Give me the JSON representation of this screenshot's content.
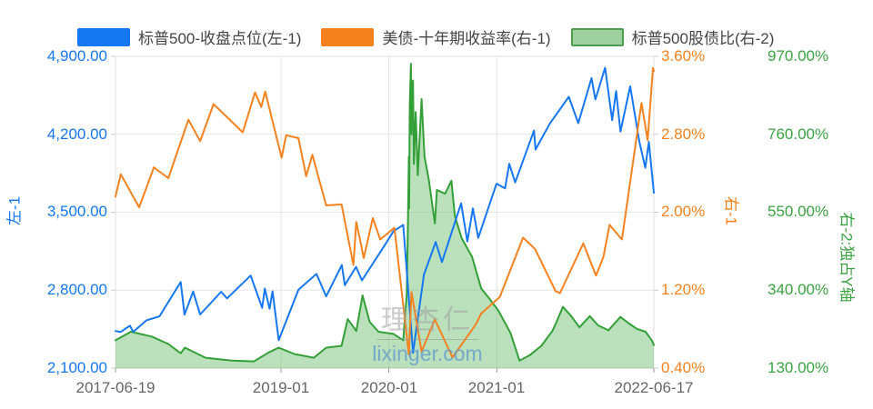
{
  "legend": {
    "items": [
      {
        "label": "标普500-收盘点位(左-1)",
        "swatch_fill": "#1677f2",
        "swatch_border": ""
      },
      {
        "label": "美债-十年期收益率(右-1)",
        "swatch_fill": "#f5821f",
        "swatch_border": ""
      },
      {
        "label": "标普500股债比(右-2)",
        "swatch_fill": "#9fd09f",
        "swatch_border": "#4b9e4e"
      }
    ]
  },
  "watermark": {
    "line1": "理杏仁",
    "line2": "lixinger.com"
  },
  "chart_data": {
    "type": "line",
    "title": "",
    "grid": true,
    "legend_position": "top",
    "x_axis": {
      "range": [
        "2017-06-19",
        "2022-06-17"
      ],
      "labels": [
        "2017-06-19",
        "2019-01",
        "2020-01",
        "2021-01",
        "2022-06-17"
      ],
      "tick_dates": [
        "2017-06-19",
        "2019-01-01",
        "2020-01-01",
        "2021-01-01",
        "2022-06-17"
      ],
      "grid_dates": [
        "2019-01-01",
        "2020-01-01",
        "2021-01-01"
      ]
    },
    "axes": {
      "left1": {
        "name": "左-1",
        "color": "#1677f2",
        "min": 2100,
        "max": 4900,
        "ticks": [
          "4,900.00",
          "4,200.00",
          "3,500.00",
          "2,800.00",
          "2,100.00"
        ]
      },
      "right1": {
        "name": "右-1",
        "color": "#f5821f",
        "min": 0.4,
        "max": 3.6,
        "ticks": [
          "3.60%",
          "2.80%",
          "2.00%",
          "1.20%",
          "0.40%"
        ]
      },
      "right2": {
        "name": "右-2:独占Y轴",
        "color": "#3ba342",
        "min": 130,
        "max": 970,
        "ticks": [
          "970.00%",
          "760.00%",
          "550.00%",
          "340.00%",
          "130.00%"
        ]
      }
    },
    "series": [
      {
        "name": "标普500股债比(右-2)",
        "axis": "right2",
        "type": "area",
        "color": "#33a037",
        "fill": "rgba(102,187,106,0.45)",
        "points": [
          [
            "2017-06-19",
            205
          ],
          [
            "2017-08-10",
            228
          ],
          [
            "2017-10-20",
            215
          ],
          [
            "2017-12-15",
            195
          ],
          [
            "2018-01-26",
            170
          ],
          [
            "2018-02-09",
            185
          ],
          [
            "2018-04-20",
            158
          ],
          [
            "2018-07-20",
            150
          ],
          [
            "2018-10-01",
            148
          ],
          [
            "2018-11-20",
            172
          ],
          [
            "2018-12-24",
            185
          ],
          [
            "2019-02-15",
            168
          ],
          [
            "2019-04-22",
            158
          ],
          [
            "2019-06-03",
            185
          ],
          [
            "2019-07-25",
            190
          ],
          [
            "2019-08-15",
            262
          ],
          [
            "2019-09-13",
            230
          ],
          [
            "2019-10-04",
            326
          ],
          [
            "2019-10-28",
            255
          ],
          [
            "2019-11-27",
            228
          ],
          [
            "2020-01-17",
            222
          ],
          [
            "2020-02-19",
            205
          ],
          [
            "2020-03-02",
            330
          ],
          [
            "2020-03-06",
            520
          ],
          [
            "2020-03-09",
            700
          ],
          [
            "2020-03-10",
            560
          ],
          [
            "2020-03-12",
            840
          ],
          [
            "2020-03-16",
            950
          ],
          [
            "2020-03-18",
            760
          ],
          [
            "2020-03-20",
            870
          ],
          [
            "2020-03-23",
            905
          ],
          [
            "2020-03-26",
            680
          ],
          [
            "2020-04-01",
            820
          ],
          [
            "2020-04-08",
            650
          ],
          [
            "2020-04-21",
            855
          ],
          [
            "2020-05-01",
            700
          ],
          [
            "2020-05-15",
            640
          ],
          [
            "2020-06-05",
            520
          ],
          [
            "2020-06-12",
            610
          ],
          [
            "2020-07-10",
            600
          ],
          [
            "2020-07-31",
            635
          ],
          [
            "2020-08-12",
            540
          ],
          [
            "2020-09-04",
            480
          ],
          [
            "2020-10-09",
            430
          ],
          [
            "2020-11-09",
            345
          ],
          [
            "2020-12-04",
            320
          ],
          [
            "2021-01-06",
            285
          ],
          [
            "2021-02-16",
            225
          ],
          [
            "2021-03-19",
            150
          ],
          [
            "2021-04-23",
            165
          ],
          [
            "2021-06-01",
            190
          ],
          [
            "2021-07-08",
            230
          ],
          [
            "2021-07-20",
            250
          ],
          [
            "2021-08-13",
            295
          ],
          [
            "2021-09-10",
            270
          ],
          [
            "2021-10-08",
            240
          ],
          [
            "2021-11-12",
            270
          ],
          [
            "2021-12-10",
            245
          ],
          [
            "2022-01-14",
            232
          ],
          [
            "2022-02-24",
            268
          ],
          [
            "2022-03-25",
            250
          ],
          [
            "2022-04-22",
            235
          ],
          [
            "2022-05-20",
            228
          ],
          [
            "2022-06-10",
            205
          ],
          [
            "2022-06-17",
            192
          ]
        ]
      },
      {
        "name": "标普500-收盘点位(左-1)",
        "axis": "left1",
        "type": "line",
        "color": "#1677f2",
        "fill": "",
        "points": [
          [
            "2017-06-19",
            2433
          ],
          [
            "2017-07-07",
            2425
          ],
          [
            "2017-08-07",
            2481
          ],
          [
            "2017-08-18",
            2426
          ],
          [
            "2017-10-02",
            2529
          ],
          [
            "2017-11-15",
            2565
          ],
          [
            "2018-01-26",
            2873
          ],
          [
            "2018-02-08",
            2581
          ],
          [
            "2018-03-09",
            2787
          ],
          [
            "2018-04-02",
            2582
          ],
          [
            "2018-06-12",
            2786
          ],
          [
            "2018-07-02",
            2726
          ],
          [
            "2018-09-20",
            2931
          ],
          [
            "2018-10-29",
            2641
          ],
          [
            "2018-11-07",
            2814
          ],
          [
            "2018-11-23",
            2633
          ],
          [
            "2018-12-03",
            2790
          ],
          [
            "2018-12-24",
            2351
          ],
          [
            "2019-03-01",
            2804
          ],
          [
            "2019-05-01",
            2946
          ],
          [
            "2019-06-03",
            2744
          ],
          [
            "2019-07-26",
            3026
          ],
          [
            "2019-08-05",
            2845
          ],
          [
            "2019-09-12",
            3009
          ],
          [
            "2019-10-02",
            2888
          ],
          [
            "2019-12-27",
            3240
          ],
          [
            "2020-01-17",
            3330
          ],
          [
            "2020-02-19",
            3386
          ],
          [
            "2020-03-23",
            2237
          ],
          [
            "2020-04-29",
            2940
          ],
          [
            "2020-06-08",
            3232
          ],
          [
            "2020-06-29",
            3053
          ],
          [
            "2020-09-02",
            3580
          ],
          [
            "2020-09-23",
            3237
          ],
          [
            "2020-10-12",
            3534
          ],
          [
            "2020-10-30",
            3270
          ],
          [
            "2020-12-31",
            3756
          ],
          [
            "2021-01-29",
            3714
          ],
          [
            "2021-02-12",
            3935
          ],
          [
            "2021-03-04",
            3768
          ],
          [
            "2021-05-07",
            4233
          ],
          [
            "2021-05-12",
            4063
          ],
          [
            "2021-06-30",
            4298
          ],
          [
            "2021-09-02",
            4537
          ],
          [
            "2021-10-04",
            4300
          ],
          [
            "2021-11-18",
            4705
          ],
          [
            "2021-12-01",
            4513
          ],
          [
            "2022-01-03",
            4797
          ],
          [
            "2022-01-27",
            4326
          ],
          [
            "2022-02-09",
            4587
          ],
          [
            "2022-02-24",
            4225
          ],
          [
            "2022-03-29",
            4631
          ],
          [
            "2022-04-29",
            4132
          ],
          [
            "2022-05-19",
            3900
          ],
          [
            "2022-05-31",
            4132
          ],
          [
            "2022-06-17",
            3675
          ]
        ]
      },
      {
        "name": "美债-十年期收益率(右-1)",
        "axis": "right1",
        "type": "line",
        "color": "#f5821f",
        "fill": "",
        "points": [
          [
            "2017-06-19",
            2.16
          ],
          [
            "2017-07-07",
            2.39
          ],
          [
            "2017-09-07",
            2.05
          ],
          [
            "2017-10-27",
            2.46
          ],
          [
            "2017-12-15",
            2.35
          ],
          [
            "2018-02-21",
            2.95
          ],
          [
            "2018-04-02",
            2.73
          ],
          [
            "2018-05-17",
            3.11
          ],
          [
            "2018-08-24",
            2.82
          ],
          [
            "2018-10-05",
            3.23
          ],
          [
            "2018-10-26",
            3.08
          ],
          [
            "2018-11-08",
            3.24
          ],
          [
            "2019-01-03",
            2.56
          ],
          [
            "2019-01-18",
            2.79
          ],
          [
            "2019-03-01",
            2.76
          ],
          [
            "2019-03-27",
            2.37
          ],
          [
            "2019-04-17",
            2.59
          ],
          [
            "2019-06-03",
            2.07
          ],
          [
            "2019-07-25",
            2.08
          ],
          [
            "2019-09-03",
            1.46
          ],
          [
            "2019-09-13",
            1.9
          ],
          [
            "2019-10-08",
            1.53
          ],
          [
            "2019-11-08",
            1.94
          ],
          [
            "2019-12-03",
            1.72
          ],
          [
            "2020-01-20",
            1.84
          ],
          [
            "2020-03-09",
            0.54
          ],
          [
            "2020-03-18",
            1.18
          ],
          [
            "2020-04-21",
            0.57
          ],
          [
            "2020-06-05",
            0.9
          ],
          [
            "2020-08-04",
            0.51
          ],
          [
            "2020-10-22",
            0.85
          ],
          [
            "2020-11-09",
            0.96
          ],
          [
            "2021-01-11",
            1.13
          ],
          [
            "2021-03-31",
            1.74
          ],
          [
            "2021-05-11",
            1.62
          ],
          [
            "2021-07-19",
            1.19
          ],
          [
            "2021-08-03",
            1.17
          ],
          [
            "2021-10-21",
            1.68
          ],
          [
            "2021-12-03",
            1.35
          ],
          [
            "2021-12-28",
            1.54
          ],
          [
            "2022-01-18",
            1.87
          ],
          [
            "2022-03-01",
            1.72
          ],
          [
            "2022-05-06",
            3.12
          ],
          [
            "2022-05-27",
            2.74
          ],
          [
            "2022-06-14",
            3.48
          ],
          [
            "2022-06-17",
            3.45
          ]
        ]
      }
    ]
  }
}
